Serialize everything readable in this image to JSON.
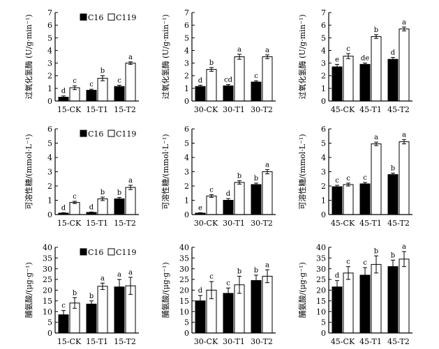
{
  "colors": {
    "c16": "#000000",
    "c119": "#ffffff",
    "axis": "#000000"
  },
  "chart_data": [
    {
      "type": "bar",
      "ylabel": "过氧化氢酶 (U/g·min⁻¹)",
      "ylim": [
        0,
        7
      ],
      "yticks": [
        0,
        1,
        2,
        3,
        4,
        5,
        6,
        7
      ],
      "categories": [
        "15-CK",
        "15-T1",
        "15-T2"
      ],
      "series": [
        {
          "name": "C16",
          "values": [
            0.3,
            0.85,
            1.15
          ],
          "errors": [
            0.1,
            0.08,
            0.1
          ],
          "letters": [
            "d",
            "c",
            "c"
          ]
        },
        {
          "name": "C119",
          "values": [
            1.05,
            1.8,
            3.0
          ],
          "errors": [
            0.15,
            0.2,
            0.1
          ],
          "letters": [
            "c",
            "b",
            "a"
          ]
        }
      ],
      "legend": [
        "C16",
        "C119"
      ]
    },
    {
      "type": "bar",
      "ylabel": "过氧化氢酶 (U/g·min⁻¹)",
      "ylim": [
        0,
        7
      ],
      "yticks": [
        0,
        1,
        2,
        3,
        4,
        5,
        6,
        7
      ],
      "categories": [
        "30-CK",
        "30-T1",
        "30-T2"
      ],
      "series": [
        {
          "name": "C16",
          "values": [
            1.15,
            1.2,
            1.5
          ],
          "errors": [
            0.1,
            0.1,
            0.1
          ],
          "letters": [
            "d",
            "cd",
            "c"
          ]
        },
        {
          "name": "C119",
          "values": [
            2.5,
            3.5,
            3.5
          ],
          "errors": [
            0.15,
            0.2,
            0.15
          ],
          "letters": [
            "b",
            "a",
            "a"
          ]
        }
      ]
    },
    {
      "type": "bar",
      "ylabel": "过氧化氢酶 (U/g·min⁻¹)",
      "ylim": [
        0,
        7
      ],
      "yticks": [
        0,
        1,
        2,
        3,
        4,
        5,
        6,
        7
      ],
      "categories": [
        "45-CK",
        "45-T1",
        "45-T2"
      ],
      "series": [
        {
          "name": "C16",
          "values": [
            2.7,
            2.9,
            3.3
          ],
          "errors": [
            0.2,
            0.1,
            0.15
          ],
          "letters": [
            "e",
            "de",
            "d"
          ]
        },
        {
          "name": "C119",
          "values": [
            3.55,
            5.1,
            5.7
          ],
          "errors": [
            0.2,
            0.15,
            0.15
          ],
          "letters": [
            "c",
            "b",
            "a"
          ]
        }
      ]
    },
    {
      "type": "bar",
      "ylabel": "可溶性糖/(mmol·L⁻¹)",
      "ylim": [
        0,
        6
      ],
      "yticks": [
        0,
        1,
        2,
        3,
        4,
        5,
        6
      ],
      "categories": [
        "15-CK",
        "15-T1",
        "15-T2"
      ],
      "series": [
        {
          "name": "C16",
          "values": [
            0.1,
            0.15,
            1.1
          ],
          "errors": [
            0.03,
            0.03,
            0.1
          ],
          "letters": [
            "d",
            "d",
            "b"
          ]
        },
        {
          "name": "C119",
          "values": [
            0.85,
            1.1,
            1.9
          ],
          "errors": [
            0.08,
            0.12,
            0.15
          ],
          "letters": [
            "c",
            "b",
            "a"
          ]
        }
      ],
      "legend": [
        "C16",
        "C119"
      ]
    },
    {
      "type": "bar",
      "ylabel": "可溶性糖/(mmol·L⁻¹)",
      "ylim": [
        0,
        6
      ],
      "yticks": [
        0,
        1,
        2,
        3,
        4,
        5,
        6
      ],
      "categories": [
        "30-CK",
        "30-T1",
        "30-T2"
      ],
      "series": [
        {
          "name": "C16",
          "values": [
            0.1,
            1.0,
            2.1
          ],
          "errors": [
            0.03,
            0.12,
            0.1
          ],
          "letters": [
            "e",
            "d",
            "b"
          ]
        },
        {
          "name": "C119",
          "values": [
            1.3,
            2.25,
            3.0
          ],
          "errors": [
            0.1,
            0.12,
            0.15
          ],
          "letters": [
            "c",
            "b",
            "a"
          ]
        }
      ]
    },
    {
      "type": "bar",
      "ylabel": "可溶性糖/(mmol·L⁻¹)",
      "ylim": [
        0,
        6
      ],
      "yticks": [
        0,
        1,
        2,
        3,
        4,
        5,
        6
      ],
      "categories": [
        "45-CK",
        "45-T1",
        "45-T2"
      ],
      "series": [
        {
          "name": "C16",
          "values": [
            1.95,
            2.15,
            2.8
          ],
          "errors": [
            0.1,
            0.1,
            0.1
          ],
          "letters": [
            "c",
            "c",
            "b"
          ]
        },
        {
          "name": "C119",
          "values": [
            2.1,
            4.95,
            5.1
          ],
          "errors": [
            0.1,
            0.12,
            0.15
          ],
          "letters": [
            "c",
            "a",
            "a"
          ]
        }
      ]
    },
    {
      "type": "bar",
      "ylabel": "脯氨酸/(μg·g⁻¹)",
      "ylim": [
        0,
        40
      ],
      "yticks": [
        0,
        5,
        10,
        15,
        20,
        25,
        30,
        35,
        40
      ],
      "categories": [
        "15-CK",
        "15-T1",
        "15-T2"
      ],
      "series": [
        {
          "name": "C16",
          "values": [
            8.5,
            13.5,
            21.5
          ],
          "errors": [
            2.0,
            1.5,
            3.5
          ],
          "letters": [
            "c",
            "b",
            "a"
          ]
        },
        {
          "name": "C119",
          "values": [
            14.0,
            21.8,
            22.0
          ],
          "errors": [
            2.5,
            1.5,
            4.0
          ],
          "letters": [
            "b",
            "a",
            "a"
          ]
        }
      ],
      "legend": [
        "C16",
        "C119"
      ]
    },
    {
      "type": "bar",
      "ylabel": "脯氨酸/(μg·g⁻¹)",
      "ylim": [
        0,
        40
      ],
      "yticks": [
        0,
        5,
        10,
        15,
        20,
        25,
        30,
        35,
        40
      ],
      "categories": [
        "30-CK",
        "30-T1",
        "30-T2"
      ],
      "series": [
        {
          "name": "C16",
          "values": [
            15.0,
            18.5,
            24.5
          ],
          "errors": [
            2.5,
            2.5,
            2.5
          ],
          "letters": [
            "d",
            "c",
            "b"
          ]
        },
        {
          "name": "C119",
          "values": [
            20.0,
            22.5,
            26.5
          ],
          "errors": [
            4.0,
            4.0,
            3.0
          ],
          "letters": [
            "c",
            "b",
            "a"
          ]
        }
      ]
    },
    {
      "type": "bar",
      "ylabel": "脯氨酸/(μg·g⁻¹)",
      "ylim": [
        0,
        40
      ],
      "yticks": [
        0,
        5,
        10,
        15,
        20,
        25,
        30,
        35,
        40
      ],
      "categories": [
        "45-CK",
        "45-T1",
        "45-T2"
      ],
      "series": [
        {
          "name": "C16",
          "values": [
            21.5,
            27.0,
            31.0
          ],
          "errors": [
            3.0,
            3.5,
            3.0
          ],
          "letters": [
            "d",
            "c",
            "b"
          ]
        },
        {
          "name": "C119",
          "values": [
            28.0,
            32.0,
            34.5
          ],
          "errors": [
            3.0,
            4.0,
            3.5
          ],
          "letters": [
            "c",
            "b",
            "a"
          ]
        }
      ]
    }
  ]
}
